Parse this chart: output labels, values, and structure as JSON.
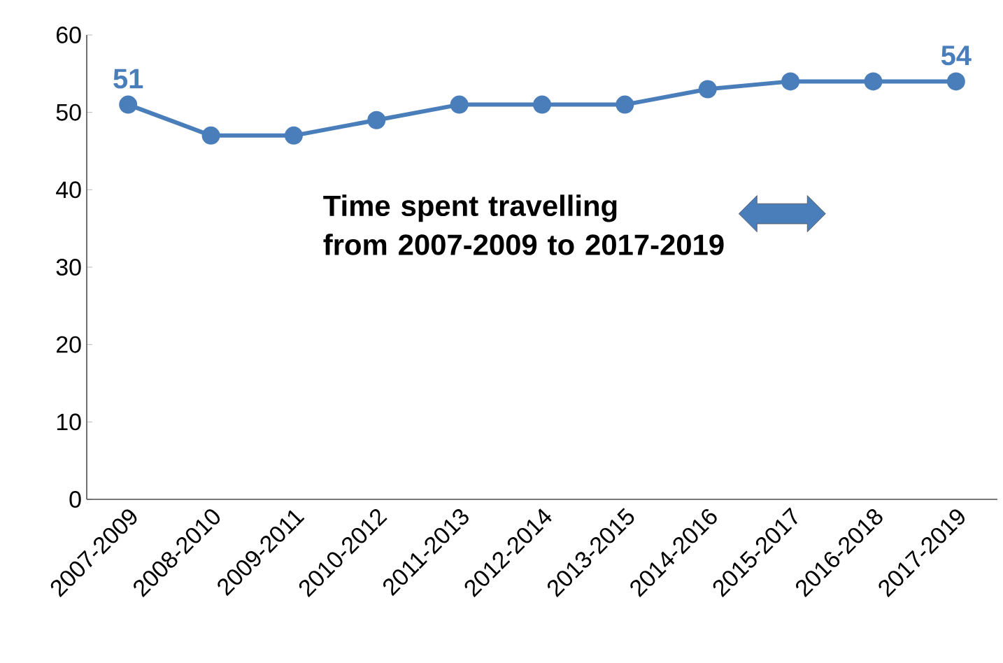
{
  "chart_data": {
    "type": "line",
    "categories": [
      "2007-2009",
      "2008-2010",
      "2009-2011",
      "2010-2012",
      "2011-2013",
      "2012-2014",
      "2013-2015",
      "2014-2016",
      "2015-2017",
      "2016-2018",
      "2017-2019"
    ],
    "series": [
      {
        "color": "#4a7ebb",
        "values": [
          51,
          47,
          47,
          49,
          51,
          51,
          51,
          53,
          54,
          54,
          54
        ],
        "value_labels": [
          "51",
          null,
          null,
          null,
          null,
          null,
          null,
          null,
          null,
          null,
          "54"
        ]
      }
    ],
    "ylim": [
      0,
      60
    ],
    "yticks": [
      0,
      10,
      20,
      30,
      40,
      50,
      60
    ],
    "marker": "circle",
    "line_style": "solid",
    "grid": false,
    "annotations": [
      "Time spent travelling\nfrom 2007-2009 to 2017-2019"
    ]
  }
}
